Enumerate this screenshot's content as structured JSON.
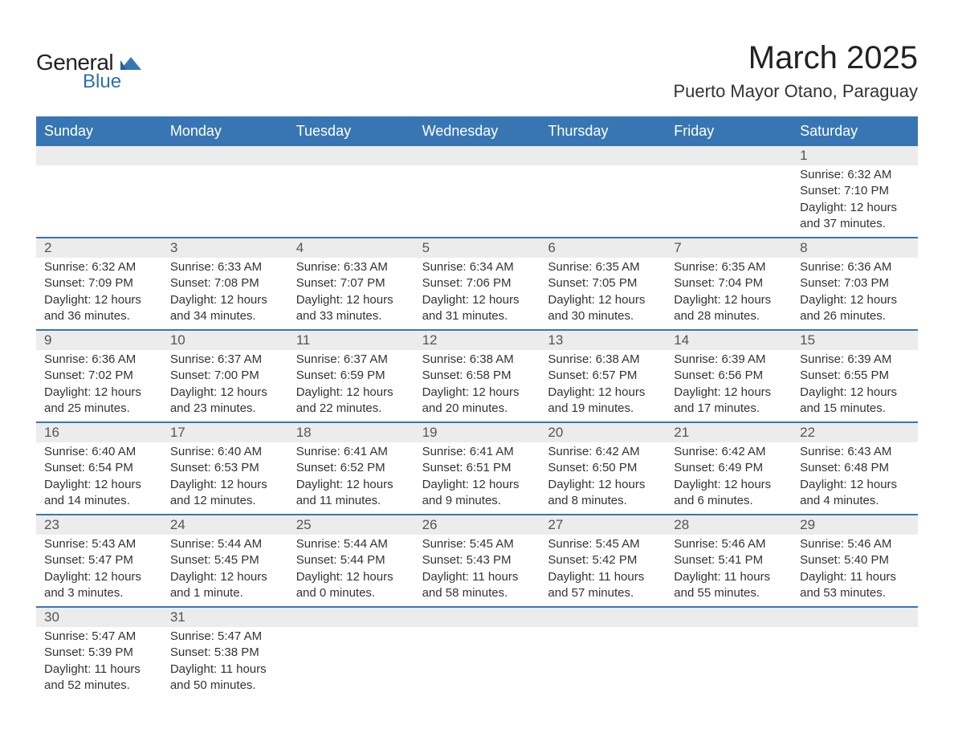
{
  "brand": {
    "name_line1": "General",
    "name_line2": "Blue",
    "text_color": "#222222",
    "accent_color": "#2f6fb0",
    "logo_shape_color": "#3876b3"
  },
  "header": {
    "title": "March 2025",
    "subtitle": "Puerto Mayor Otano, Paraguay",
    "title_fontsize": 40,
    "subtitle_fontsize": 22
  },
  "calendar": {
    "type": "table",
    "header_bg": "#3876b3",
    "header_text_color": "#ffffff",
    "row_divider_color": "#3876b3",
    "daynum_bg": "#ececec",
    "text_color": "#333333",
    "body_fontsize": 15,
    "daynum_fontsize": 17,
    "columns": [
      "Sunday",
      "Monday",
      "Tuesday",
      "Wednesday",
      "Thursday",
      "Friday",
      "Saturday"
    ],
    "weeks": [
      [
        {
          "day": "",
          "lines": [
            "",
            "",
            "",
            ""
          ]
        },
        {
          "day": "",
          "lines": [
            "",
            "",
            "",
            ""
          ]
        },
        {
          "day": "",
          "lines": [
            "",
            "",
            "",
            ""
          ]
        },
        {
          "day": "",
          "lines": [
            "",
            "",
            "",
            ""
          ]
        },
        {
          "day": "",
          "lines": [
            "",
            "",
            "",
            ""
          ]
        },
        {
          "day": "",
          "lines": [
            "",
            "",
            "",
            ""
          ]
        },
        {
          "day": "1",
          "lines": [
            "Sunrise: 6:32 AM",
            "Sunset: 7:10 PM",
            "Daylight: 12 hours",
            "and 37 minutes."
          ]
        }
      ],
      [
        {
          "day": "2",
          "lines": [
            "Sunrise: 6:32 AM",
            "Sunset: 7:09 PM",
            "Daylight: 12 hours",
            "and 36 minutes."
          ]
        },
        {
          "day": "3",
          "lines": [
            "Sunrise: 6:33 AM",
            "Sunset: 7:08 PM",
            "Daylight: 12 hours",
            "and 34 minutes."
          ]
        },
        {
          "day": "4",
          "lines": [
            "Sunrise: 6:33 AM",
            "Sunset: 7:07 PM",
            "Daylight: 12 hours",
            "and 33 minutes."
          ]
        },
        {
          "day": "5",
          "lines": [
            "Sunrise: 6:34 AM",
            "Sunset: 7:06 PM",
            "Daylight: 12 hours",
            "and 31 minutes."
          ]
        },
        {
          "day": "6",
          "lines": [
            "Sunrise: 6:35 AM",
            "Sunset: 7:05 PM",
            "Daylight: 12 hours",
            "and 30 minutes."
          ]
        },
        {
          "day": "7",
          "lines": [
            "Sunrise: 6:35 AM",
            "Sunset: 7:04 PM",
            "Daylight: 12 hours",
            "and 28 minutes."
          ]
        },
        {
          "day": "8",
          "lines": [
            "Sunrise: 6:36 AM",
            "Sunset: 7:03 PM",
            "Daylight: 12 hours",
            "and 26 minutes."
          ]
        }
      ],
      [
        {
          "day": "9",
          "lines": [
            "Sunrise: 6:36 AM",
            "Sunset: 7:02 PM",
            "Daylight: 12 hours",
            "and 25 minutes."
          ]
        },
        {
          "day": "10",
          "lines": [
            "Sunrise: 6:37 AM",
            "Sunset: 7:00 PM",
            "Daylight: 12 hours",
            "and 23 minutes."
          ]
        },
        {
          "day": "11",
          "lines": [
            "Sunrise: 6:37 AM",
            "Sunset: 6:59 PM",
            "Daylight: 12 hours",
            "and 22 minutes."
          ]
        },
        {
          "day": "12",
          "lines": [
            "Sunrise: 6:38 AM",
            "Sunset: 6:58 PM",
            "Daylight: 12 hours",
            "and 20 minutes."
          ]
        },
        {
          "day": "13",
          "lines": [
            "Sunrise: 6:38 AM",
            "Sunset: 6:57 PM",
            "Daylight: 12 hours",
            "and 19 minutes."
          ]
        },
        {
          "day": "14",
          "lines": [
            "Sunrise: 6:39 AM",
            "Sunset: 6:56 PM",
            "Daylight: 12 hours",
            "and 17 minutes."
          ]
        },
        {
          "day": "15",
          "lines": [
            "Sunrise: 6:39 AM",
            "Sunset: 6:55 PM",
            "Daylight: 12 hours",
            "and 15 minutes."
          ]
        }
      ],
      [
        {
          "day": "16",
          "lines": [
            "Sunrise: 6:40 AM",
            "Sunset: 6:54 PM",
            "Daylight: 12 hours",
            "and 14 minutes."
          ]
        },
        {
          "day": "17",
          "lines": [
            "Sunrise: 6:40 AM",
            "Sunset: 6:53 PM",
            "Daylight: 12 hours",
            "and 12 minutes."
          ]
        },
        {
          "day": "18",
          "lines": [
            "Sunrise: 6:41 AM",
            "Sunset: 6:52 PM",
            "Daylight: 12 hours",
            "and 11 minutes."
          ]
        },
        {
          "day": "19",
          "lines": [
            "Sunrise: 6:41 AM",
            "Sunset: 6:51 PM",
            "Daylight: 12 hours",
            "and 9 minutes."
          ]
        },
        {
          "day": "20",
          "lines": [
            "Sunrise: 6:42 AM",
            "Sunset: 6:50 PM",
            "Daylight: 12 hours",
            "and 8 minutes."
          ]
        },
        {
          "day": "21",
          "lines": [
            "Sunrise: 6:42 AM",
            "Sunset: 6:49 PM",
            "Daylight: 12 hours",
            "and 6 minutes."
          ]
        },
        {
          "day": "22",
          "lines": [
            "Sunrise: 6:43 AM",
            "Sunset: 6:48 PM",
            "Daylight: 12 hours",
            "and 4 minutes."
          ]
        }
      ],
      [
        {
          "day": "23",
          "lines": [
            "Sunrise: 5:43 AM",
            "Sunset: 5:47 PM",
            "Daylight: 12 hours",
            "and 3 minutes."
          ]
        },
        {
          "day": "24",
          "lines": [
            "Sunrise: 5:44 AM",
            "Sunset: 5:45 PM",
            "Daylight: 12 hours",
            "and 1 minute."
          ]
        },
        {
          "day": "25",
          "lines": [
            "Sunrise: 5:44 AM",
            "Sunset: 5:44 PM",
            "Daylight: 12 hours",
            "and 0 minutes."
          ]
        },
        {
          "day": "26",
          "lines": [
            "Sunrise: 5:45 AM",
            "Sunset: 5:43 PM",
            "Daylight: 11 hours",
            "and 58 minutes."
          ]
        },
        {
          "day": "27",
          "lines": [
            "Sunrise: 5:45 AM",
            "Sunset: 5:42 PM",
            "Daylight: 11 hours",
            "and 57 minutes."
          ]
        },
        {
          "day": "28",
          "lines": [
            "Sunrise: 5:46 AM",
            "Sunset: 5:41 PM",
            "Daylight: 11 hours",
            "and 55 minutes."
          ]
        },
        {
          "day": "29",
          "lines": [
            "Sunrise: 5:46 AM",
            "Sunset: 5:40 PM",
            "Daylight: 11 hours",
            "and 53 minutes."
          ]
        }
      ],
      [
        {
          "day": "30",
          "lines": [
            "Sunrise: 5:47 AM",
            "Sunset: 5:39 PM",
            "Daylight: 11 hours",
            "and 52 minutes."
          ]
        },
        {
          "day": "31",
          "lines": [
            "Sunrise: 5:47 AM",
            "Sunset: 5:38 PM",
            "Daylight: 11 hours",
            "and 50 minutes."
          ]
        },
        {
          "day": "",
          "lines": [
            "",
            "",
            "",
            ""
          ]
        },
        {
          "day": "",
          "lines": [
            "",
            "",
            "",
            ""
          ]
        },
        {
          "day": "",
          "lines": [
            "",
            "",
            "",
            ""
          ]
        },
        {
          "day": "",
          "lines": [
            "",
            "",
            "",
            ""
          ]
        },
        {
          "day": "",
          "lines": [
            "",
            "",
            "",
            ""
          ]
        }
      ]
    ]
  }
}
